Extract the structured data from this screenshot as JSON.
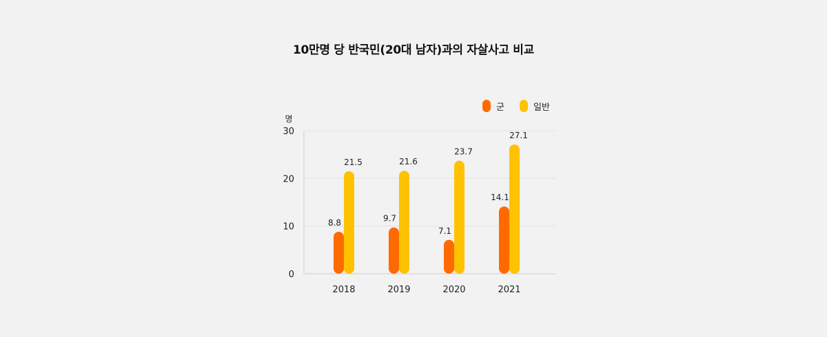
{
  "chart_data": {
    "type": "bar",
    "title": "10만명 당 반국민(20대 남자)과의 자살사고 비교",
    "ylabel": "명",
    "xlabel": "",
    "categories": [
      "2018",
      "2019",
      "2020",
      "2021"
    ],
    "series": [
      {
        "name": "군",
        "values": [
          8.8,
          9.7,
          7.1,
          14.1
        ],
        "labels": [
          "8.8",
          "9.7",
          "7.1",
          "14.1"
        ],
        "color": "#ff6a00"
      },
      {
        "name": "일반",
        "values": [
          21.5,
          21.6,
          23.7,
          27.1
        ],
        "labels": [
          "21.5",
          "21.6",
          "23.7",
          "27.1"
        ],
        "color": "#ffc200"
      }
    ],
    "ylim": [
      0,
      30
    ],
    "yticks": [
      "0",
      "10",
      "20",
      "30"
    ],
    "grid": true,
    "legend": "top-right"
  }
}
